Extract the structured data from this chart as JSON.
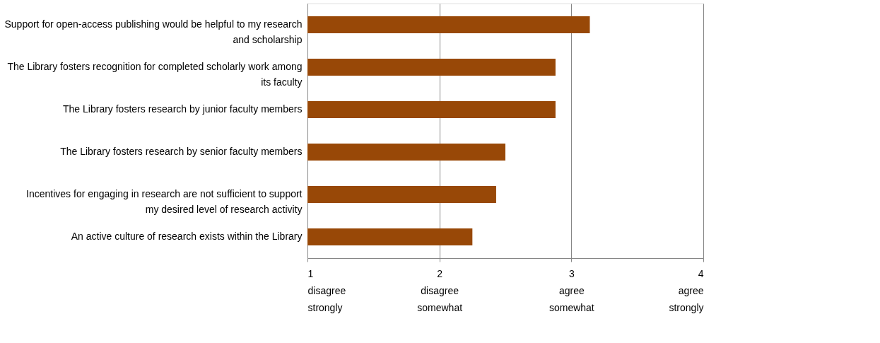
{
  "chart_data": {
    "type": "bar",
    "orientation": "horizontal",
    "categories": [
      "Support for open-access publishing would be helpful to my research and scholarship",
      "The Library fosters recognition for completed scholarly work among its faculty",
      "The Library fosters research by junior faculty members",
      "The Library fosters research by senior faculty members",
      "Incentives for engaging in research are not sufficient to support my desired level of research activity",
      "An active culture of research exists within the Library"
    ],
    "values": [
      3.14,
      2.88,
      2.88,
      2.5,
      2.43,
      2.25
    ],
    "color": "#984807",
    "xlim": [
      1,
      4
    ],
    "xticks": [
      {
        "value": 1,
        "label": "1\ndisagree\nstrongly"
      },
      {
        "value": 2,
        "label": "2\ndisagree\nsomewhat"
      },
      {
        "value": 3,
        "label": "3\nagree\nsomewhat"
      },
      {
        "value": 4,
        "label": "4\nagree\nstrongly"
      }
    ],
    "grid": "x"
  }
}
